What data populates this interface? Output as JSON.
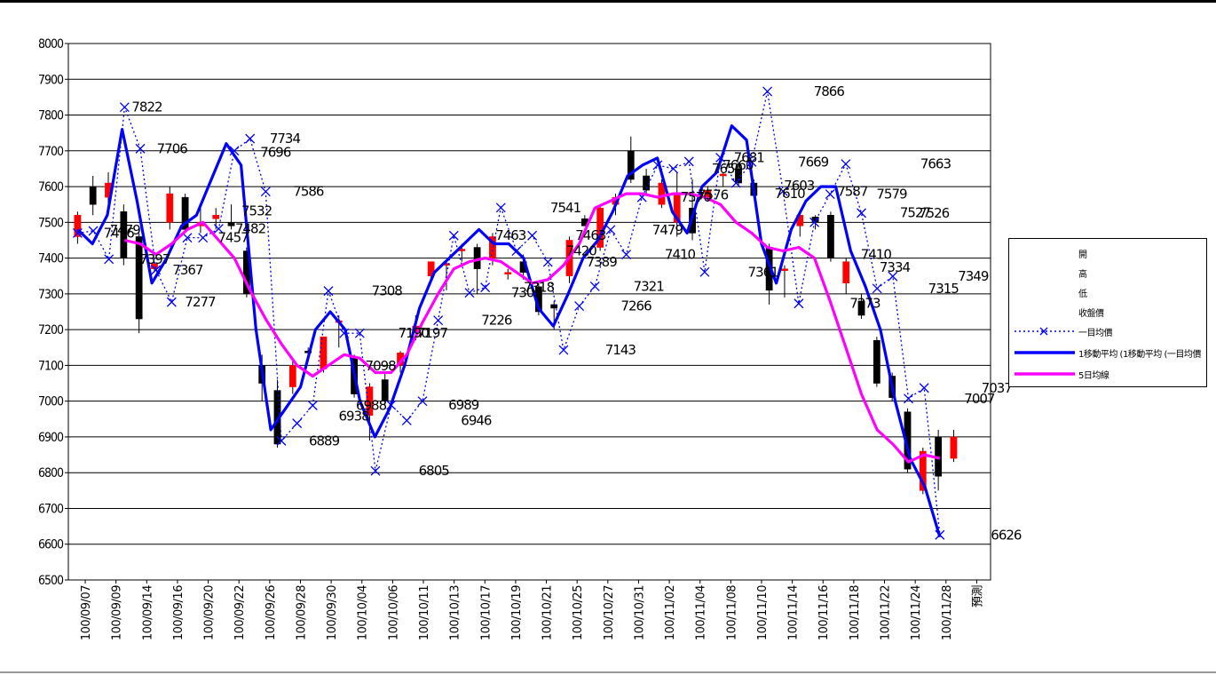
{
  "chart_data": {
    "type": "candlestick-line",
    "ylim": [
      6500,
      8000
    ],
    "yticks": [
      "8000",
      "7900",
      "7800",
      "7700",
      "7600",
      "7500",
      "7400",
      "7300",
      "7200",
      "7100",
      "7000",
      "6900",
      "6800",
      "6700",
      "6600",
      "6500"
    ],
    "xticks": [
      "100/09/07",
      "100/09/09",
      "100/09/14",
      "100/09/16",
      "100/09/20",
      "100/09/22",
      "100/09/26",
      "100/09/28",
      "100/09/30",
      "100/10/04",
      "100/10/06",
      "100/10/11",
      "100/10/13",
      "100/10/17",
      "100/10/19",
      "100/10/21",
      "100/10/25",
      "100/10/27",
      "100/10/31",
      "100/11/02",
      "100/11/04",
      "100/11/08",
      "100/11/10",
      "100/11/14",
      "100/11/16",
      "100/11/18",
      "100/11/22",
      "100/11/24",
      "100/11/28",
      "預測"
    ],
    "candles": [
      {
        "o": 7460,
        "h": 7530,
        "l": 7440,
        "c": 7520
      },
      {
        "o": 7600,
        "h": 7630,
        "l": 7520,
        "c": 7550
      },
      {
        "o": 7570,
        "h": 7640,
        "l": 7550,
        "c": 7610
      },
      {
        "o": 7530,
        "h": 7550,
        "l": 7380,
        "c": 7400
      },
      {
        "o": 7460,
        "h": 7470,
        "l": 7190,
        "c": 7230
      },
      {
        "o": 7370,
        "h": 7390,
        "l": 7360,
        "c": 7385
      },
      {
        "o": 7500,
        "h": 7600,
        "l": 7480,
        "c": 7580
      },
      {
        "o": 7570,
        "h": 7580,
        "l": 7470,
        "c": 7480
      },
      {
        "o": 7490,
        "h": 7540,
        "l": 7470,
        "c": 7500
      },
      {
        "o": 7510,
        "h": 7540,
        "l": 7480,
        "c": 7520
      },
      {
        "o": 7500,
        "h": 7550,
        "l": 7480,
        "c": 7490
      },
      {
        "o": 7420,
        "h": 7430,
        "l": 7290,
        "c": 7300
      },
      {
        "o": 7100,
        "h": 7130,
        "l": 7000,
        "c": 7050
      },
      {
        "o": 7030,
        "h": 7060,
        "l": 6870,
        "c": 6880
      },
      {
        "o": 7040,
        "h": 7120,
        "l": 7020,
        "c": 7100
      },
      {
        "o": 7140,
        "h": 7150,
        "l": 7120,
        "c": 7135
      },
      {
        "o": 7090,
        "h": 7180,
        "l": 7080,
        "c": 7180
      },
      {
        "o": 7220,
        "h": 7240,
        "l": 7150,
        "c": 7225
      },
      {
        "o": 7120,
        "h": 7130,
        "l": 7010,
        "c": 7020
      },
      {
        "o": 6960,
        "h": 7050,
        "l": 6890,
        "c": 7040
      },
      {
        "o": 7060,
        "h": 7080,
        "l": 6990,
        "c": 7000
      },
      {
        "o": 7100,
        "h": 7140,
        "l": 7080,
        "c": 7135
      },
      {
        "o": 7195,
        "h": 7240,
        "l": 7170,
        "c": 7210
      },
      {
        "o": 7350,
        "h": 7390,
        "l": 7340,
        "c": 7390
      },
      {
        "o": 7385,
        "h": 7395,
        "l": 7310,
        "c": 7385
      },
      {
        "o": 7425,
        "h": 7440,
        "l": 7390,
        "c": 7425
      },
      {
        "o": 7430,
        "h": 7440,
        "l": 7300,
        "c": 7370
      },
      {
        "o": 7400,
        "h": 7470,
        "l": 7380,
        "c": 7460
      },
      {
        "o": 7355,
        "h": 7370,
        "l": 7340,
        "c": 7360
      },
      {
        "o": 7390,
        "h": 7410,
        "l": 7340,
        "c": 7360
      },
      {
        "o": 7320,
        "h": 7330,
        "l": 7240,
        "c": 7250
      },
      {
        "o": 7270,
        "h": 7280,
        "l": 7200,
        "c": 7260
      },
      {
        "o": 7350,
        "h": 7460,
        "l": 7330,
        "c": 7450
      },
      {
        "o": 7510,
        "h": 7520,
        "l": 7490,
        "c": 7490
      },
      {
        "o": 7430,
        "h": 7550,
        "l": 7420,
        "c": 7540
      },
      {
        "o": 7550,
        "h": 7580,
        "l": 7520,
        "c": 7570
      },
      {
        "o": 7700,
        "h": 7740,
        "l": 7610,
        "c": 7620
      },
      {
        "o": 7630,
        "h": 7650,
        "l": 7580,
        "c": 7590
      },
      {
        "o": 7550,
        "h": 7620,
        "l": 7540,
        "c": 7610
      },
      {
        "o": 7500,
        "h": 7640,
        "l": 7460,
        "c": 7580
      },
      {
        "o": 7540,
        "h": 7620,
        "l": 7450,
        "c": 7470
      },
      {
        "o": 7570,
        "h": 7600,
        "l": 7560,
        "c": 7590
      },
      {
        "o": 7630,
        "h": 7640,
        "l": 7600,
        "c": 7635
      },
      {
        "o": 7650,
        "h": 7670,
        "l": 7600,
        "c": 7610
      },
      {
        "o": 7610,
        "h": 7620,
        "l": 7570,
        "c": 7575
      },
      {
        "o": 7430,
        "h": 7440,
        "l": 7270,
        "c": 7310
      },
      {
        "o": 7370,
        "h": 7380,
        "l": 7290,
        "c": 7370
      },
      {
        "o": 7490,
        "h": 7530,
        "l": 7460,
        "c": 7520
      },
      {
        "o": 7515,
        "h": 7520,
        "l": 7480,
        "c": 7500
      },
      {
        "o": 7520,
        "h": 7530,
        "l": 7390,
        "c": 7400
      },
      {
        "o": 7330,
        "h": 7400,
        "l": 7300,
        "c": 7390
      },
      {
        "o": 7280,
        "h": 7300,
        "l": 7230,
        "c": 7240
      },
      {
        "o": 7170,
        "h": 7180,
        "l": 7040,
        "c": 7050
      },
      {
        "o": 7070,
        "h": 7080,
        "l": 7000,
        "c": 7010
      },
      {
        "o": 6970,
        "h": 6980,
        "l": 6800,
        "c": 6810
      },
      {
        "o": 6750,
        "h": 6870,
        "l": 6740,
        "c": 6860
      },
      {
        "o": 6900,
        "h": 6920,
        "l": 6750,
        "c": 6790
      },
      {
        "o": 6840,
        "h": 6920,
        "l": 6830,
        "c": 6900
      }
    ],
    "series": [
      {
        "name": "一目均價",
        "style": "dotted-x",
        "values": [
          7470,
          7476,
          7397,
          7822,
          7706,
          7367,
          7277,
          7457,
          7457,
          7482,
          7700,
          7734,
          7586,
          6889,
          6938,
          6988,
          7308,
          7190,
          7190,
          6805,
          6989,
          6946,
          7000,
          7226,
          7463,
          7303,
          7318,
          7541,
          7420,
          7463,
          7389,
          7143,
          7266,
          7321,
          7479,
          7410,
          7570,
          7660,
          7650,
          7670,
          7361,
          7681,
          7610,
          7669,
          7866,
          7587,
          7273,
          7500,
          7579,
          7663,
          7526,
          7315,
          7349,
          7007,
          7037,
          6626
        ]
      },
      {
        "name": "",
        "style": "solid-blue",
        "values": [
          7480,
          7440,
          7520,
          7760,
          7560,
          7330,
          7400,
          7490,
          7520,
          7620,
          7720,
          7660,
          7200,
          6920,
          6980,
          7040,
          7200,
          7250,
          7200,
          7000,
          6900,
          6980,
          7100,
          7260,
          7360,
          7400,
          7440,
          7480,
          7440,
          7440,
          7400,
          7260,
          7210,
          7300,
          7400,
          7450,
          7530,
          7630,
          7660,
          7680,
          7530,
          7470,
          7600,
          7640,
          7770,
          7730,
          7440,
          7330,
          7480,
          7560,
          7600,
          7600,
          7420,
          7320,
          7200,
          7000,
          6840,
          6760,
          6620
        ]
      },
      {
        "name": "5日均線",
        "style": "solid-magenta",
        "values": [
          null,
          null,
          null,
          7450,
          7440,
          7410,
          7440,
          7480,
          7500,
          7450,
          7400,
          7310,
          7230,
          7160,
          7100,
          7070,
          7100,
          7130,
          7120,
          7080,
          7080,
          7130,
          7220,
          7300,
          7370,
          7390,
          7400,
          7390,
          7360,
          7330,
          7340,
          7380,
          7440,
          7540,
          7560,
          7580,
          7580,
          7570,
          7580,
          7580,
          7570,
          7550,
          7500,
          7470,
          7430,
          7420,
          7430,
          7400,
          7280,
          7150,
          7020,
          6920,
          6880,
          6830,
          6850,
          6840
        ]
      }
    ],
    "annotations": [
      {
        "text": "7822",
        "x": 3,
        "y": 7822
      },
      {
        "text": "7706",
        "x": 4.6,
        "y": 7706
      },
      {
        "text": "7476",
        "x": 1.2,
        "y": 7470
      },
      {
        "text": "7479",
        "x": 1.6,
        "y": 7479
      },
      {
        "text": "7397",
        "x": 3.5,
        "y": 7397
      },
      {
        "text": "7367",
        "x": 5.6,
        "y": 7367
      },
      {
        "text": "7277",
        "x": 6.4,
        "y": 7277
      },
      {
        "text": "7457",
        "x": 8.5,
        "y": 7457
      },
      {
        "text": "7532",
        "x": 10,
        "y": 7532
      },
      {
        "text": "7482",
        "x": 9.6,
        "y": 7482
      },
      {
        "text": "7734",
        "x": 11.8,
        "y": 7734
      },
      {
        "text": "7696",
        "x": 11.2,
        "y": 7696
      },
      {
        "text": "7586",
        "x": 13.3,
        "y": 7586
      },
      {
        "text": "6889",
        "x": 14.3,
        "y": 6889
      },
      {
        "text": "6938",
        "x": 16.2,
        "y": 6958
      },
      {
        "text": "6988",
        "x": 17.3,
        "y": 6988
      },
      {
        "text": "7308",
        "x": 18.3,
        "y": 7308
      },
      {
        "text": "7098",
        "x": 17.9,
        "y": 7098
      },
      {
        "text": "7190",
        "x": 20,
        "y": 7190
      },
      {
        "text": "7197",
        "x": 21.2,
        "y": 7190
      },
      {
        "text": "6805",
        "x": 21.3,
        "y": 6805
      },
      {
        "text": "6989",
        "x": 23.2,
        "y": 6989
      },
      {
        "text": "6946",
        "x": 24,
        "y": 6946
      },
      {
        "text": "7226",
        "x": 25.3,
        "y": 7226
      },
      {
        "text": "7463",
        "x": 26.2,
        "y": 7463
      },
      {
        "text": "7303",
        "x": 27.2,
        "y": 7303
      },
      {
        "text": "7318",
        "x": 28,
        "y": 7318
      },
      {
        "text": "7541",
        "x": 29.7,
        "y": 7541
      },
      {
        "text": "7420",
        "x": 30.7,
        "y": 7420
      },
      {
        "text": "7463",
        "x": 31.3,
        "y": 7463
      },
      {
        "text": "7389",
        "x": 32,
        "y": 7389
      },
      {
        "text": "7143",
        "x": 33.2,
        "y": 7143
      },
      {
        "text": "7266",
        "x": 34.2,
        "y": 7266
      },
      {
        "text": "7321",
        "x": 35,
        "y": 7321
      },
      {
        "text": "7479",
        "x": 36.2,
        "y": 7479
      },
      {
        "text": "7410",
        "x": 37,
        "y": 7410
      },
      {
        "text": "7570",
        "x": 38,
        "y": 7570
      },
      {
        "text": "7576",
        "x": 39.1,
        "y": 7576
      },
      {
        "text": "7650",
        "x": 40,
        "y": 7650
      },
      {
        "text": "7660",
        "x": 40.7,
        "y": 7660
      },
      {
        "text": "7681",
        "x": 41.4,
        "y": 7681
      },
      {
        "text": "7361",
        "x": 42.3,
        "y": 7361
      },
      {
        "text": "7610",
        "x": 44,
        "y": 7580
      },
      {
        "text": "7603",
        "x": 44.6,
        "y": 7603
      },
      {
        "text": "7669",
        "x": 45.5,
        "y": 7669
      },
      {
        "text": "7866",
        "x": 46.5,
        "y": 7866
      },
      {
        "text": "7587",
        "x": 48,
        "y": 7587
      },
      {
        "text": "7273",
        "x": 48.8,
        "y": 7273
      },
      {
        "text": "7410",
        "x": 49.5,
        "y": 7410
      },
      {
        "text": "7579",
        "x": 50.5,
        "y": 7579
      },
      {
        "text": "7334",
        "x": 50.7,
        "y": 7374
      },
      {
        "text": "7527",
        "x": 52,
        "y": 7527
      },
      {
        "text": "7526",
        "x": 53.2,
        "y": 7526
      },
      {
        "text": "7663",
        "x": 53.3,
        "y": 7663
      },
      {
        "text": "7315",
        "x": 53.8,
        "y": 7315
      },
      {
        "text": "7349",
        "x": 55.7,
        "y": 7349
      },
      {
        "text": "7007",
        "x": 56.1,
        "y": 7007
      },
      {
        "text": "7037",
        "x": 57.2,
        "y": 7037
      },
      {
        "text": "6626",
        "x": 57.8,
        "y": 6626
      }
    ],
    "legend": {
      "position": "right",
      "entries": [
        "開",
        "高",
        "低",
        "收盤價",
        "一目均價",
        "1移動平均 (1移動平均 (一目均價",
        "5日均線"
      ]
    },
    "colors": {
      "up": "#ff0000",
      "down": "#000000",
      "blue": "#0000ff",
      "magenta": "#ff00ff",
      "cross": "#0000ff"
    },
    "grid": true
  }
}
